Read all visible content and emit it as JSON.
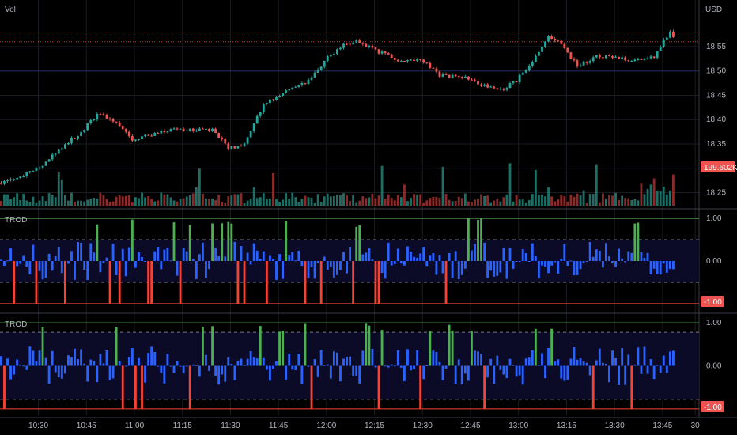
{
  "colors": {
    "background": "#000000",
    "grid": "#1a1c24",
    "up": "#26a69a",
    "down": "#ef5350",
    "vol_up": "#1e6e66",
    "vol_down": "#8c2a2a",
    "osc_blue": "#2962ff",
    "osc_green": "#4caf50",
    "osc_red": "#f44336",
    "osc_fill": "#0b0b28",
    "text": "#b2b5be"
  },
  "header": {
    "main_label": "Vol",
    "currency": "USD"
  },
  "chart_data": [
    {
      "type": "candlestick",
      "name": "price",
      "ylim": [
        18.22,
        18.61
      ],
      "y_ticks": [
        "18.55",
        "18.50",
        "18.45",
        "18.40",
        "18.35",
        "18.30",
        "18.25"
      ],
      "x_ticks": [
        "10:30",
        "10:45",
        "11:00",
        "11:15",
        "11:30",
        "11:45",
        "12:00",
        "12:15",
        "12:30",
        "12:45",
        "13:00",
        "13:15",
        "13:30",
        "13:45",
        "30"
      ],
      "x_tick_times": [
        10.5,
        10.75,
        11.0,
        11.25,
        11.5,
        11.75,
        12.0,
        12.25,
        12.5,
        12.75,
        13.0,
        13.25,
        13.5,
        13.75,
        13.92
      ],
      "checkpoints": [
        [
          10.3,
          18.27
        ],
        [
          10.4,
          18.28
        ],
        [
          10.52,
          18.3
        ],
        [
          10.62,
          18.34
        ],
        [
          10.72,
          18.37
        ],
        [
          10.82,
          18.41
        ],
        [
          10.9,
          18.4
        ],
        [
          11.0,
          18.36
        ],
        [
          11.1,
          18.37
        ],
        [
          11.2,
          18.38
        ],
        [
          11.3,
          18.38
        ],
        [
          11.42,
          18.38
        ],
        [
          11.5,
          18.34
        ],
        [
          11.58,
          18.35
        ],
        [
          11.68,
          18.43
        ],
        [
          11.8,
          18.46
        ],
        [
          11.92,
          18.48
        ],
        [
          12.0,
          18.52
        ],
        [
          12.08,
          18.55
        ],
        [
          12.18,
          18.56
        ],
        [
          12.28,
          18.54
        ],
        [
          12.4,
          18.52
        ],
        [
          12.52,
          18.52
        ],
        [
          12.6,
          18.49
        ],
        [
          12.72,
          18.49
        ],
        [
          12.82,
          18.47
        ],
        [
          12.92,
          18.46
        ],
        [
          13.0,
          18.48
        ],
        [
          13.08,
          18.52
        ],
        [
          13.16,
          18.57
        ],
        [
          13.22,
          18.56
        ],
        [
          13.32,
          18.51
        ],
        [
          13.42,
          18.53
        ],
        [
          13.52,
          18.53
        ],
        [
          13.62,
          18.52
        ],
        [
          13.72,
          18.53
        ],
        [
          13.78,
          18.57
        ],
        [
          13.8,
          18.58
        ],
        [
          13.83,
          18.56
        ]
      ],
      "current_price": 18.56,
      "high_line": 18.58
    },
    {
      "type": "bar",
      "name": "volume",
      "axis_label": "199.602K",
      "volume_last": 199.602
    },
    {
      "type": "bar",
      "name": "TROD",
      "title": "TROD",
      "ylim": [
        -1.15,
        1.15
      ],
      "y_ticks": [
        "1.00",
        "0.00",
        "-1.00"
      ],
      "badge": "-1.00",
      "upper_dash": 0.5,
      "lower_dash": -0.5
    },
    {
      "type": "bar",
      "name": "TROD 2",
      "title": "TROD",
      "ylim": [
        -1.15,
        1.15
      ],
      "y_ticks": [
        "1.00",
        "0.00",
        "-1.00"
      ],
      "badge": "-1.00",
      "upper_dash": 0.78,
      "lower_dash": -0.78
    }
  ]
}
